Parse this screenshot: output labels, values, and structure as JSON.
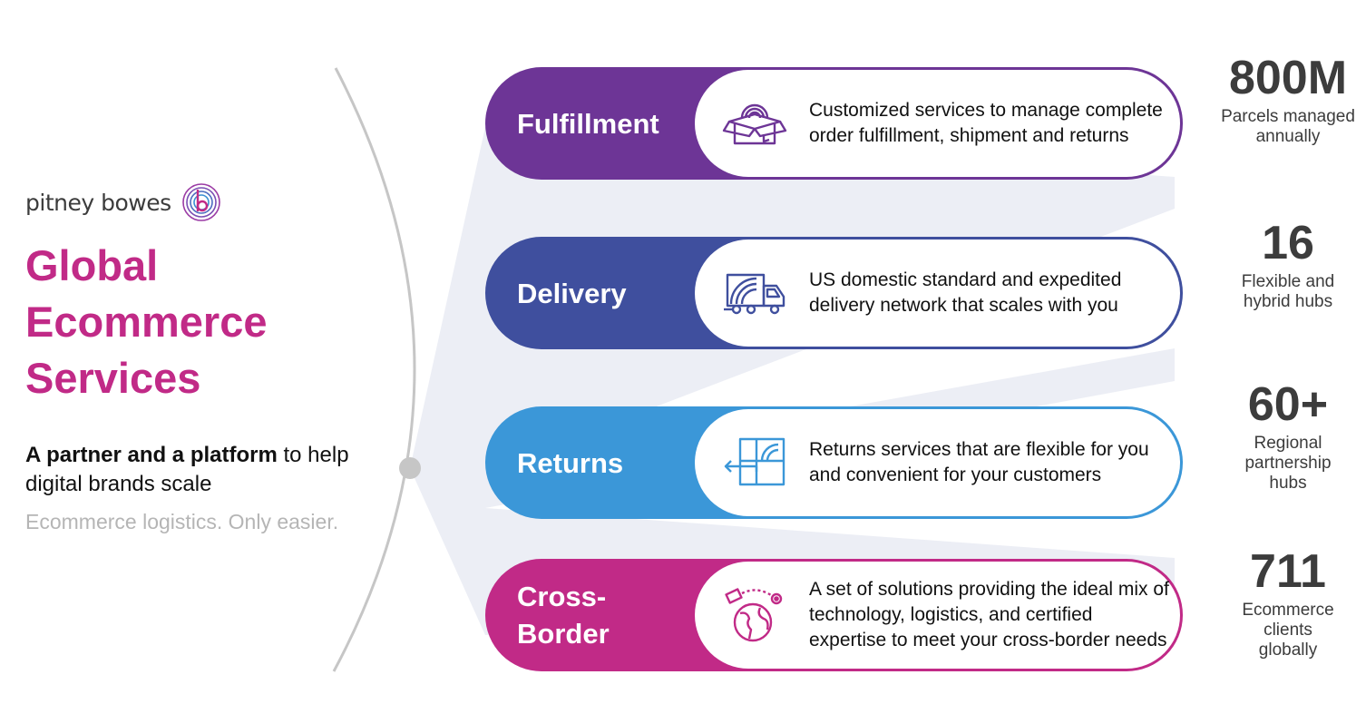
{
  "brand": {
    "name": "pitney bowes",
    "logo_icon": "pb-swirl-logo-icon"
  },
  "title": "Global Ecommerce Services",
  "tagline": {
    "bold": "A partner and a platform",
    "rest": " to help digital brands scale"
  },
  "subtagline": "Ecommerce logistics. Only easier.",
  "colors": {
    "title": "#c12a87",
    "fulfillment": "#6d3596",
    "delivery": "#3f4f9e",
    "returns": "#3b97d8",
    "cross_border": "#c12a87",
    "fan": "#e6e8f1"
  },
  "services": [
    {
      "label": "Fulfillment",
      "icon": "open-box-icon",
      "description": "Customized services to manage complete order fulfillment, shipment and returns"
    },
    {
      "label": "Delivery",
      "icon": "delivery-truck-icon",
      "description": "US domestic standard and expedited delivery network that scales with you"
    },
    {
      "label": "Returns",
      "icon": "return-package-icon",
      "description": "Returns services that are flexible for you and convenient for your customers"
    },
    {
      "label": "Cross-Border",
      "icon": "globe-icon",
      "description": "A set of solutions providing the ideal mix of technology, logistics, and certified expertise to meet your cross-border needs"
    }
  ],
  "stats": [
    {
      "value": "800M",
      "caption": "Parcels managed annually"
    },
    {
      "value": "16",
      "caption": "Flexible and hybrid hubs"
    },
    {
      "value": "60+",
      "caption": "Regional partnership hubs"
    },
    {
      "value": "711",
      "caption": "Ecommerce clients globally"
    }
  ]
}
